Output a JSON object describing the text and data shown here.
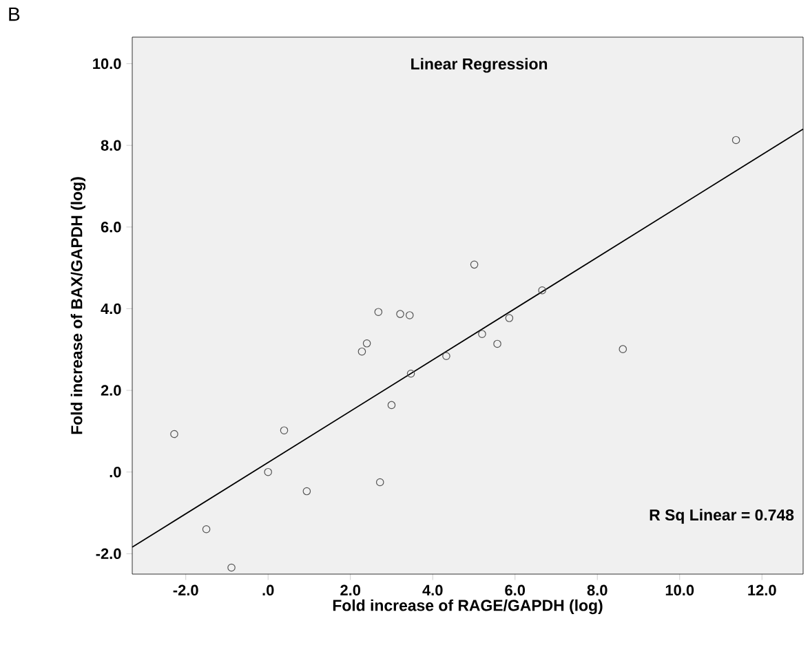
{
  "chart_data": {
    "type": "scatter",
    "title": "Linear Regression",
    "xlabel": "Fold increase of RAGE/GAPDH (log)",
    "ylabel": "Fold increase of BAX/GAPDH (log)",
    "annotations": [
      "B",
      "R Sq Linear = 0.748"
    ],
    "xlim": [
      -3.3,
      13.0
    ],
    "ylim": [
      -2.5,
      10.65
    ],
    "xticks": [
      {
        "value": -2,
        "label": "-2.0"
      },
      {
        "value": 0,
        "label": ".0"
      },
      {
        "value": 2,
        "label": "2.0"
      },
      {
        "value": 4,
        "label": "4.0"
      },
      {
        "value": 6,
        "label": "6.0"
      },
      {
        "value": 8,
        "label": "8.0"
      },
      {
        "value": 10,
        "label": "10.0"
      },
      {
        "value": 12,
        "label": "12.0"
      }
    ],
    "yticks": [
      {
        "value": -2,
        "label": "-2.0"
      },
      {
        "value": 0,
        "label": ".0"
      },
      {
        "value": 2,
        "label": "2.0"
      },
      {
        "value": 4,
        "label": "4.0"
      },
      {
        "value": 6,
        "label": "6.0"
      },
      {
        "value": 8,
        "label": "8.0"
      },
      {
        "value": 10,
        "label": "10.0"
      }
    ],
    "grid": false,
    "series": [
      {
        "marker": "circle",
        "color": "#555555",
        "x": [
          -2.28,
          -1.5,
          -0.89,
          0,
          0.39,
          0.94,
          2.28,
          2.4,
          2.68,
          2.72,
          3.0,
          3.21,
          3.44,
          3.47,
          4.33,
          5.01,
          5.2,
          5.57,
          5.86,
          6.66,
          8.62,
          11.37
        ],
        "values": [
          0.93,
          -1.4,
          -2.34,
          0,
          1.02,
          -0.47,
          2.95,
          3.15,
          3.92,
          -0.25,
          1.64,
          3.87,
          3.84,
          2.41,
          2.84,
          5.08,
          3.38,
          3.14,
          3.77,
          4.45,
          3.01,
          8.13
        ]
      },
      {
        "type": "line",
        "marker": "none",
        "line_style": "solid",
        "color": "#000000",
        "x": [
          -3.3,
          13.0
        ],
        "values": [
          -1.84,
          8.4
        ]
      }
    ]
  }
}
